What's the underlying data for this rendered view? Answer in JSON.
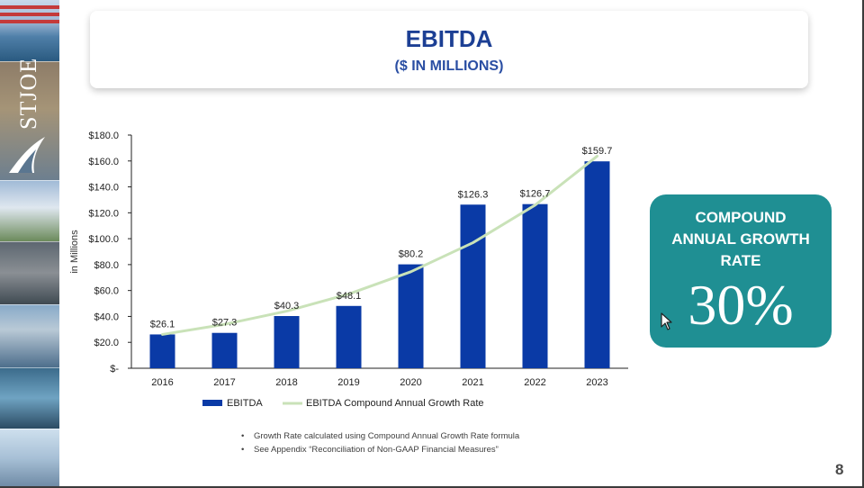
{
  "slide": {
    "title": "EBITDA",
    "subtitle": "($ IN MILLIONS)",
    "page_number": "8",
    "logo_text": "STJOE",
    "notes": [
      "Growth Rate calculated using Compound Annual Growth Rate formula",
      "See Appendix “Reconciliation of Non-GAAP Financial Measures”"
    ]
  },
  "cagr": {
    "label": "COMPOUND ANNUAL GROWTH RATE",
    "value": "30%"
  },
  "colors": {
    "bar": "#0a3aa6",
    "trend": "#c9e2b8",
    "title": "#1c3f94",
    "card": "#1f8f93"
  },
  "chart_data": {
    "type": "bar",
    "title": "EBITDA",
    "ylabel": "in Millions",
    "xlabel": "",
    "categories": [
      "2016",
      "2017",
      "2018",
      "2019",
      "2020",
      "2021",
      "2022",
      "2023"
    ],
    "series": [
      {
        "name": "EBITDA",
        "type": "bar",
        "values": [
          26.1,
          27.3,
          40.3,
          48.1,
          80.2,
          126.3,
          126.7,
          159.7
        ],
        "labels": [
          "$26.1",
          "$27.3",
          "$40.3",
          "$48.1",
          "$80.2",
          "$126.3",
          "$126.7",
          "$159.7"
        ]
      },
      {
        "name": "EBITDA Compound Annual Growth Rate",
        "type": "line",
        "values": [
          26.1,
          33.9,
          44.1,
          57.3,
          74.5,
          96.9,
          125.9,
          163.7
        ]
      }
    ],
    "ylim": [
      0,
      180
    ],
    "yticks": [
      0,
      20,
      40,
      60,
      80,
      100,
      120,
      140,
      160,
      180
    ],
    "ytick_labels": [
      "$-",
      "$20.0",
      "$40.0",
      "$60.0",
      "$80.0",
      "$100.0",
      "$120.0",
      "$140.0",
      "$160.0",
      "$180.0"
    ],
    "legend": "bottom",
    "grid": false
  }
}
